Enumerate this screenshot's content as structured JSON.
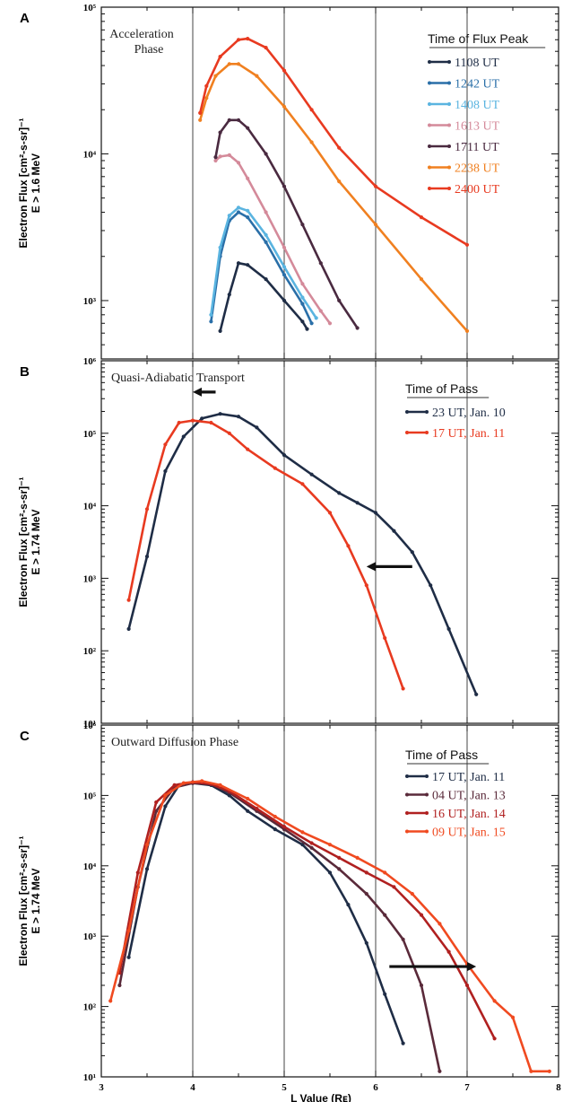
{
  "chart_data": [
    {
      "panel": "A",
      "type": "line",
      "ylabel_lines": [
        "Electron Flux [cm²-s-sr]⁻¹",
        "E > 1.6 MeV"
      ],
      "yscale": "log",
      "ylim": [
        400,
        100000
      ],
      "xlim": [
        3,
        8
      ],
      "yticks": [
        {
          "v": 1000,
          "label": "10³"
        },
        {
          "v": 10000,
          "label": "10⁴"
        },
        {
          "v": 100000,
          "label": "10⁵"
        }
      ],
      "vlines": [
        4,
        5,
        6,
        7
      ],
      "annotation_lines": [
        "Acceleration",
        "Phase"
      ],
      "legend": {
        "title": "Time of Flux Peak",
        "placement": "top-right"
      },
      "series": [
        {
          "name": "1108 UT",
          "color": "#1f2d46",
          "points": [
            [
              4.3,
              620
            ],
            [
              4.4,
              1100
            ],
            [
              4.5,
              1800
            ],
            [
              4.6,
              1750
            ],
            [
              4.8,
              1400
            ],
            [
              5.0,
              1000
            ],
            [
              5.2,
              720
            ],
            [
              5.25,
              640
            ]
          ]
        },
        {
          "name": "1242 UT",
          "color": "#2a6fa8",
          "points": [
            [
              4.2,
              720
            ],
            [
              4.3,
              2000
            ],
            [
              4.4,
              3500
            ],
            [
              4.5,
              4000
            ],
            [
              4.6,
              3700
            ],
            [
              4.8,
              2500
            ],
            [
              5.0,
              1500
            ],
            [
              5.2,
              950
            ],
            [
              5.3,
              700
            ]
          ]
        },
        {
          "name": "1408 UT",
          "color": "#5ab4e0",
          "points": [
            [
              4.2,
              800
            ],
            [
              4.3,
              2300
            ],
            [
              4.4,
              3800
            ],
            [
              4.5,
              4300
            ],
            [
              4.6,
              4100
            ],
            [
              4.8,
              2800
            ],
            [
              5.0,
              1700
            ],
            [
              5.2,
              1050
            ],
            [
              5.35,
              760
            ]
          ]
        },
        {
          "name": "1613 UT",
          "color": "#d48a9a",
          "points": [
            [
              4.25,
              9000
            ],
            [
              4.3,
              9600
            ],
            [
              4.4,
              9800
            ],
            [
              4.5,
              8700
            ],
            [
              4.6,
              6800
            ],
            [
              4.8,
              4000
            ],
            [
              5.0,
              2300
            ],
            [
              5.2,
              1300
            ],
            [
              5.4,
              850
            ],
            [
              5.5,
              700
            ]
          ]
        },
        {
          "name": "1711 UT",
          "color": "#4a2a40",
          "points": [
            [
              4.25,
              9500
            ],
            [
              4.3,
              14000
            ],
            [
              4.4,
              17000
            ],
            [
              4.5,
              17000
            ],
            [
              4.6,
              15000
            ],
            [
              4.8,
              10000
            ],
            [
              5.0,
              6000
            ],
            [
              5.2,
              3300
            ],
            [
              5.4,
              1800
            ],
            [
              5.6,
              1000
            ],
            [
              5.8,
              650
            ]
          ]
        },
        {
          "name": "2238 UT",
          "color": "#f08020",
          "points": [
            [
              4.08,
              17000
            ],
            [
              4.15,
              24000
            ],
            [
              4.25,
              34000
            ],
            [
              4.4,
              41000
            ],
            [
              4.5,
              41000
            ],
            [
              4.7,
              34000
            ],
            [
              5.0,
              21000
            ],
            [
              5.3,
              12000
            ],
            [
              5.6,
              6500
            ],
            [
              6.0,
              3300
            ],
            [
              6.5,
              1400
            ],
            [
              7.0,
              620
            ]
          ]
        },
        {
          "name": "2400 UT",
          "color": "#e83a20",
          "points": [
            [
              4.08,
              19000
            ],
            [
              4.15,
              29000
            ],
            [
              4.3,
              46000
            ],
            [
              4.5,
              60000
            ],
            [
              4.6,
              61000
            ],
            [
              4.8,
              53000
            ],
            [
              5.0,
              37000
            ],
            [
              5.3,
              20000
            ],
            [
              5.6,
              11000
            ],
            [
              6.0,
              6000
            ],
            [
              6.5,
              3700
            ],
            [
              7.0,
              2400
            ]
          ]
        }
      ]
    },
    {
      "panel": "B",
      "type": "line",
      "ylabel_lines": [
        "Electron Flux [cm²-s-sr]⁻¹",
        "E > 1.74 MeV"
      ],
      "yscale": "log",
      "ylim": [
        10,
        1000000
      ],
      "xlim": [
        3,
        8
      ],
      "yticks": [
        {
          "v": 10,
          "label": "10¹"
        },
        {
          "v": 100,
          "label": "10²"
        },
        {
          "v": 1000,
          "label": "10³"
        },
        {
          "v": 10000,
          "label": "10⁴"
        },
        {
          "v": 100000,
          "label": "10⁵"
        },
        {
          "v": 1000000,
          "label": "10⁶"
        }
      ],
      "vlines": [
        4,
        5,
        6,
        7
      ],
      "annotation_lines": [
        "Quasi-Adiabatic Transport"
      ],
      "legend": {
        "title": "Time of Pass",
        "placement": "top-right"
      },
      "arrows": [
        {
          "from": [
            4.25,
            370000
          ],
          "to": [
            4.05,
            370000
          ]
        },
        {
          "from": [
            6.4,
            1450
          ],
          "to": [
            5.95,
            1450
          ]
        }
      ],
      "series": [
        {
          "name": "23 UT, Jan. 10",
          "color": "#1f2d46",
          "points": [
            [
              3.3,
              200
            ],
            [
              3.5,
              2000
            ],
            [
              3.7,
              30000
            ],
            [
              3.9,
              90000
            ],
            [
              4.1,
              160000
            ],
            [
              4.3,
              185000
            ],
            [
              4.5,
              170000
            ],
            [
              4.7,
              120000
            ],
            [
              5.0,
              50000
            ],
            [
              5.3,
              27000
            ],
            [
              5.6,
              15000
            ],
            [
              5.8,
              11000
            ],
            [
              6.0,
              8000
            ],
            [
              6.2,
              4500
            ],
            [
              6.4,
              2300
            ],
            [
              6.6,
              800
            ],
            [
              6.8,
              200
            ],
            [
              7.1,
              25
            ]
          ]
        },
        {
          "name": "17 UT, Jan. 11",
          "color": "#e83a20",
          "points": [
            [
              3.3,
              500
            ],
            [
              3.5,
              9000
            ],
            [
              3.7,
              70000
            ],
            [
              3.85,
              140000
            ],
            [
              4.0,
              150000
            ],
            [
              4.2,
              140000
            ],
            [
              4.4,
              100000
            ],
            [
              4.6,
              60000
            ],
            [
              4.9,
              33000
            ],
            [
              5.2,
              20000
            ],
            [
              5.5,
              8000
            ],
            [
              5.7,
              2800
            ],
            [
              5.9,
              800
            ],
            [
              6.1,
              150
            ],
            [
              6.3,
              30
            ]
          ]
        }
      ]
    },
    {
      "panel": "C",
      "type": "line",
      "ylabel_lines": [
        "Electron Flux [cm²-s-sr]⁻¹",
        "E > 1.74 MeV"
      ],
      "yscale": "log",
      "ylim": [
        10,
        1000000
      ],
      "xlim": [
        3,
        8
      ],
      "xlabel": "L Value (Rᴇ)",
      "xticks": [
        3,
        4,
        5,
        6,
        7,
        8
      ],
      "yticks": [
        {
          "v": 10,
          "label": "10¹"
        },
        {
          "v": 100,
          "label": "10²"
        },
        {
          "v": 1000,
          "label": "10³"
        },
        {
          "v": 10000,
          "label": "10⁴"
        },
        {
          "v": 100000,
          "label": "10⁵"
        },
        {
          "v": 1000000,
          "label": "10⁶"
        }
      ],
      "vlines": [
        4,
        5,
        6,
        7
      ],
      "annotation_lines": [
        "Outward Diffusion Phase"
      ],
      "legend": {
        "title": "Time of Pass",
        "placement": "top-right"
      },
      "arrows": [
        {
          "from": [
            6.15,
            370
          ],
          "to": [
            7.05,
            370
          ]
        }
      ],
      "series": [
        {
          "name": "17 UT, Jan. 11",
          "color": "#1f2d46",
          "points": [
            [
              3.3,
              500
            ],
            [
              3.5,
              9000
            ],
            [
              3.7,
              70000
            ],
            [
              3.85,
              140000
            ],
            [
              4.0,
              150000
            ],
            [
              4.2,
              140000
            ],
            [
              4.4,
              100000
            ],
            [
              4.6,
              60000
            ],
            [
              4.9,
              33000
            ],
            [
              5.2,
              20000
            ],
            [
              5.5,
              8000
            ],
            [
              5.7,
              2800
            ],
            [
              5.9,
              800
            ],
            [
              6.1,
              150
            ],
            [
              6.3,
              30
            ]
          ]
        },
        {
          "name": "04 UT, Jan. 13",
          "color": "#5a2a3a",
          "points": [
            [
              3.2,
              200
            ],
            [
              3.4,
              5000
            ],
            [
              3.6,
              60000
            ],
            [
              3.8,
              130000
            ],
            [
              4.0,
              150000
            ],
            [
              4.2,
              145000
            ],
            [
              4.4,
              110000
            ],
            [
              4.7,
              60000
            ],
            [
              5.0,
              33000
            ],
            [
              5.3,
              18000
            ],
            [
              5.6,
              9000
            ],
            [
              5.9,
              4000
            ],
            [
              6.1,
              2000
            ],
            [
              6.3,
              900
            ],
            [
              6.5,
              200
            ],
            [
              6.7,
              12
            ]
          ]
        },
        {
          "name": "16 UT, Jan. 14",
          "color": "#b02020",
          "points": [
            [
              3.2,
              300
            ],
            [
              3.4,
              8000
            ],
            [
              3.6,
              80000
            ],
            [
              3.8,
              140000
            ],
            [
              4.0,
              155000
            ],
            [
              4.2,
              145000
            ],
            [
              4.4,
              115000
            ],
            [
              4.7,
              65000
            ],
            [
              5.0,
              36000
            ],
            [
              5.3,
              21000
            ],
            [
              5.6,
              13000
            ],
            [
              5.9,
              8000
            ],
            [
              6.2,
              5000
            ],
            [
              6.5,
              2000
            ],
            [
              6.8,
              600
            ],
            [
              7.0,
              200
            ],
            [
              7.3,
              35
            ]
          ]
        },
        {
          "name": "09 UT, Jan. 15",
          "color": "#f04a20",
          "points": [
            [
              3.1,
              120
            ],
            [
              3.3,
              1200
            ],
            [
              3.5,
              20000
            ],
            [
              3.7,
              100000
            ],
            [
              3.9,
              150000
            ],
            [
              4.1,
              160000
            ],
            [
              4.3,
              140000
            ],
            [
              4.6,
              90000
            ],
            [
              4.9,
              50000
            ],
            [
              5.2,
              30000
            ],
            [
              5.5,
              20000
            ],
            [
              5.8,
              13000
            ],
            [
              6.1,
              8000
            ],
            [
              6.4,
              4000
            ],
            [
              6.7,
              1500
            ],
            [
              7.0,
              400
            ],
            [
              7.3,
              120
            ],
            [
              7.5,
              70
            ],
            [
              7.7,
              12
            ],
            [
              7.9,
              12
            ]
          ]
        }
      ]
    }
  ]
}
